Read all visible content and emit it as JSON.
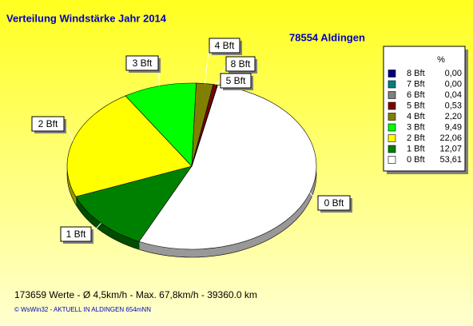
{
  "chart_data": {
    "type": "pie",
    "title": "Verteilung Windstärke  Jahr 2014",
    "subtitle": "78554 Aldingen",
    "legend_header": "%",
    "categories": [
      "8 Bft",
      "7 Bft",
      "6 Bft",
      "5 Bft",
      "4 Bft",
      "3 Bft",
      "2 Bft",
      "1 Bft",
      "0 Bft"
    ],
    "values": [
      0,
      0,
      0.04,
      0.53,
      2.2,
      9.49,
      22.06,
      12.07,
      53.61
    ],
    "value_labels": [
      "0,00",
      "0,00",
      "0,04",
      "0,53",
      "2,20",
      "9,49",
      "22,06",
      "12,07",
      "53,61"
    ],
    "colors": [
      "#000080",
      "#008080",
      "#808080",
      "#800000",
      "#808000",
      "#00ff00",
      "#ffff00",
      "#008000",
      "#ffffff"
    ],
    "footer": "173659 Werte    -    Ø 4,5km/h   -  Max. 67,8km/h    -    39360.0 km",
    "credit": "© WsWin32   -   AKTUELL IN ALDINGEN 654mNN"
  }
}
